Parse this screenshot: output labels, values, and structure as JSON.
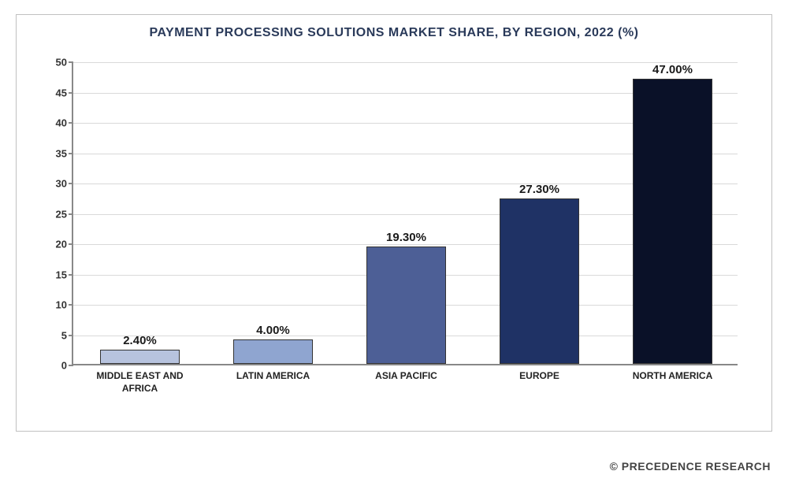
{
  "chart": {
    "type": "bar",
    "title": "PAYMENT PROCESSING SOLUTIONS MARKET SHARE, BY REGION, 2022 (%)",
    "title_color": "#2a3a5a",
    "title_fontsize": 16,
    "categories": [
      "MIDDLE EAST AND AFRICA",
      "LATIN AMERICA",
      "ASIA PACIFIC",
      "EUROPE",
      "NORTH AMERICA"
    ],
    "values": [
      2.4,
      4.0,
      19.3,
      27.3,
      47.0
    ],
    "value_labels": [
      "2.40%",
      "4.00%",
      "19.30%",
      "27.30%",
      "47.00%"
    ],
    "bar_colors": [
      "#b7c3de",
      "#8fa5d0",
      "#4d5f96",
      "#1f3265",
      "#0a1128"
    ],
    "ylim": [
      0,
      50
    ],
    "ytick_step": 5,
    "yticks": [
      0,
      5,
      10,
      15,
      20,
      25,
      30,
      35,
      40,
      45,
      50
    ],
    "grid_color": "#d9d9d9",
    "axis_color": "#888888",
    "background_color": "#ffffff",
    "border_color": "#c0c0c0",
    "tick_fontsize": 13,
    "xtick_fontsize": 12,
    "value_label_fontsize": 15,
    "bar_width_ratio": 0.6
  },
  "footer": {
    "text": "© PRECEDENCE RESEARCH",
    "color": "#444444",
    "fontsize": 14
  }
}
